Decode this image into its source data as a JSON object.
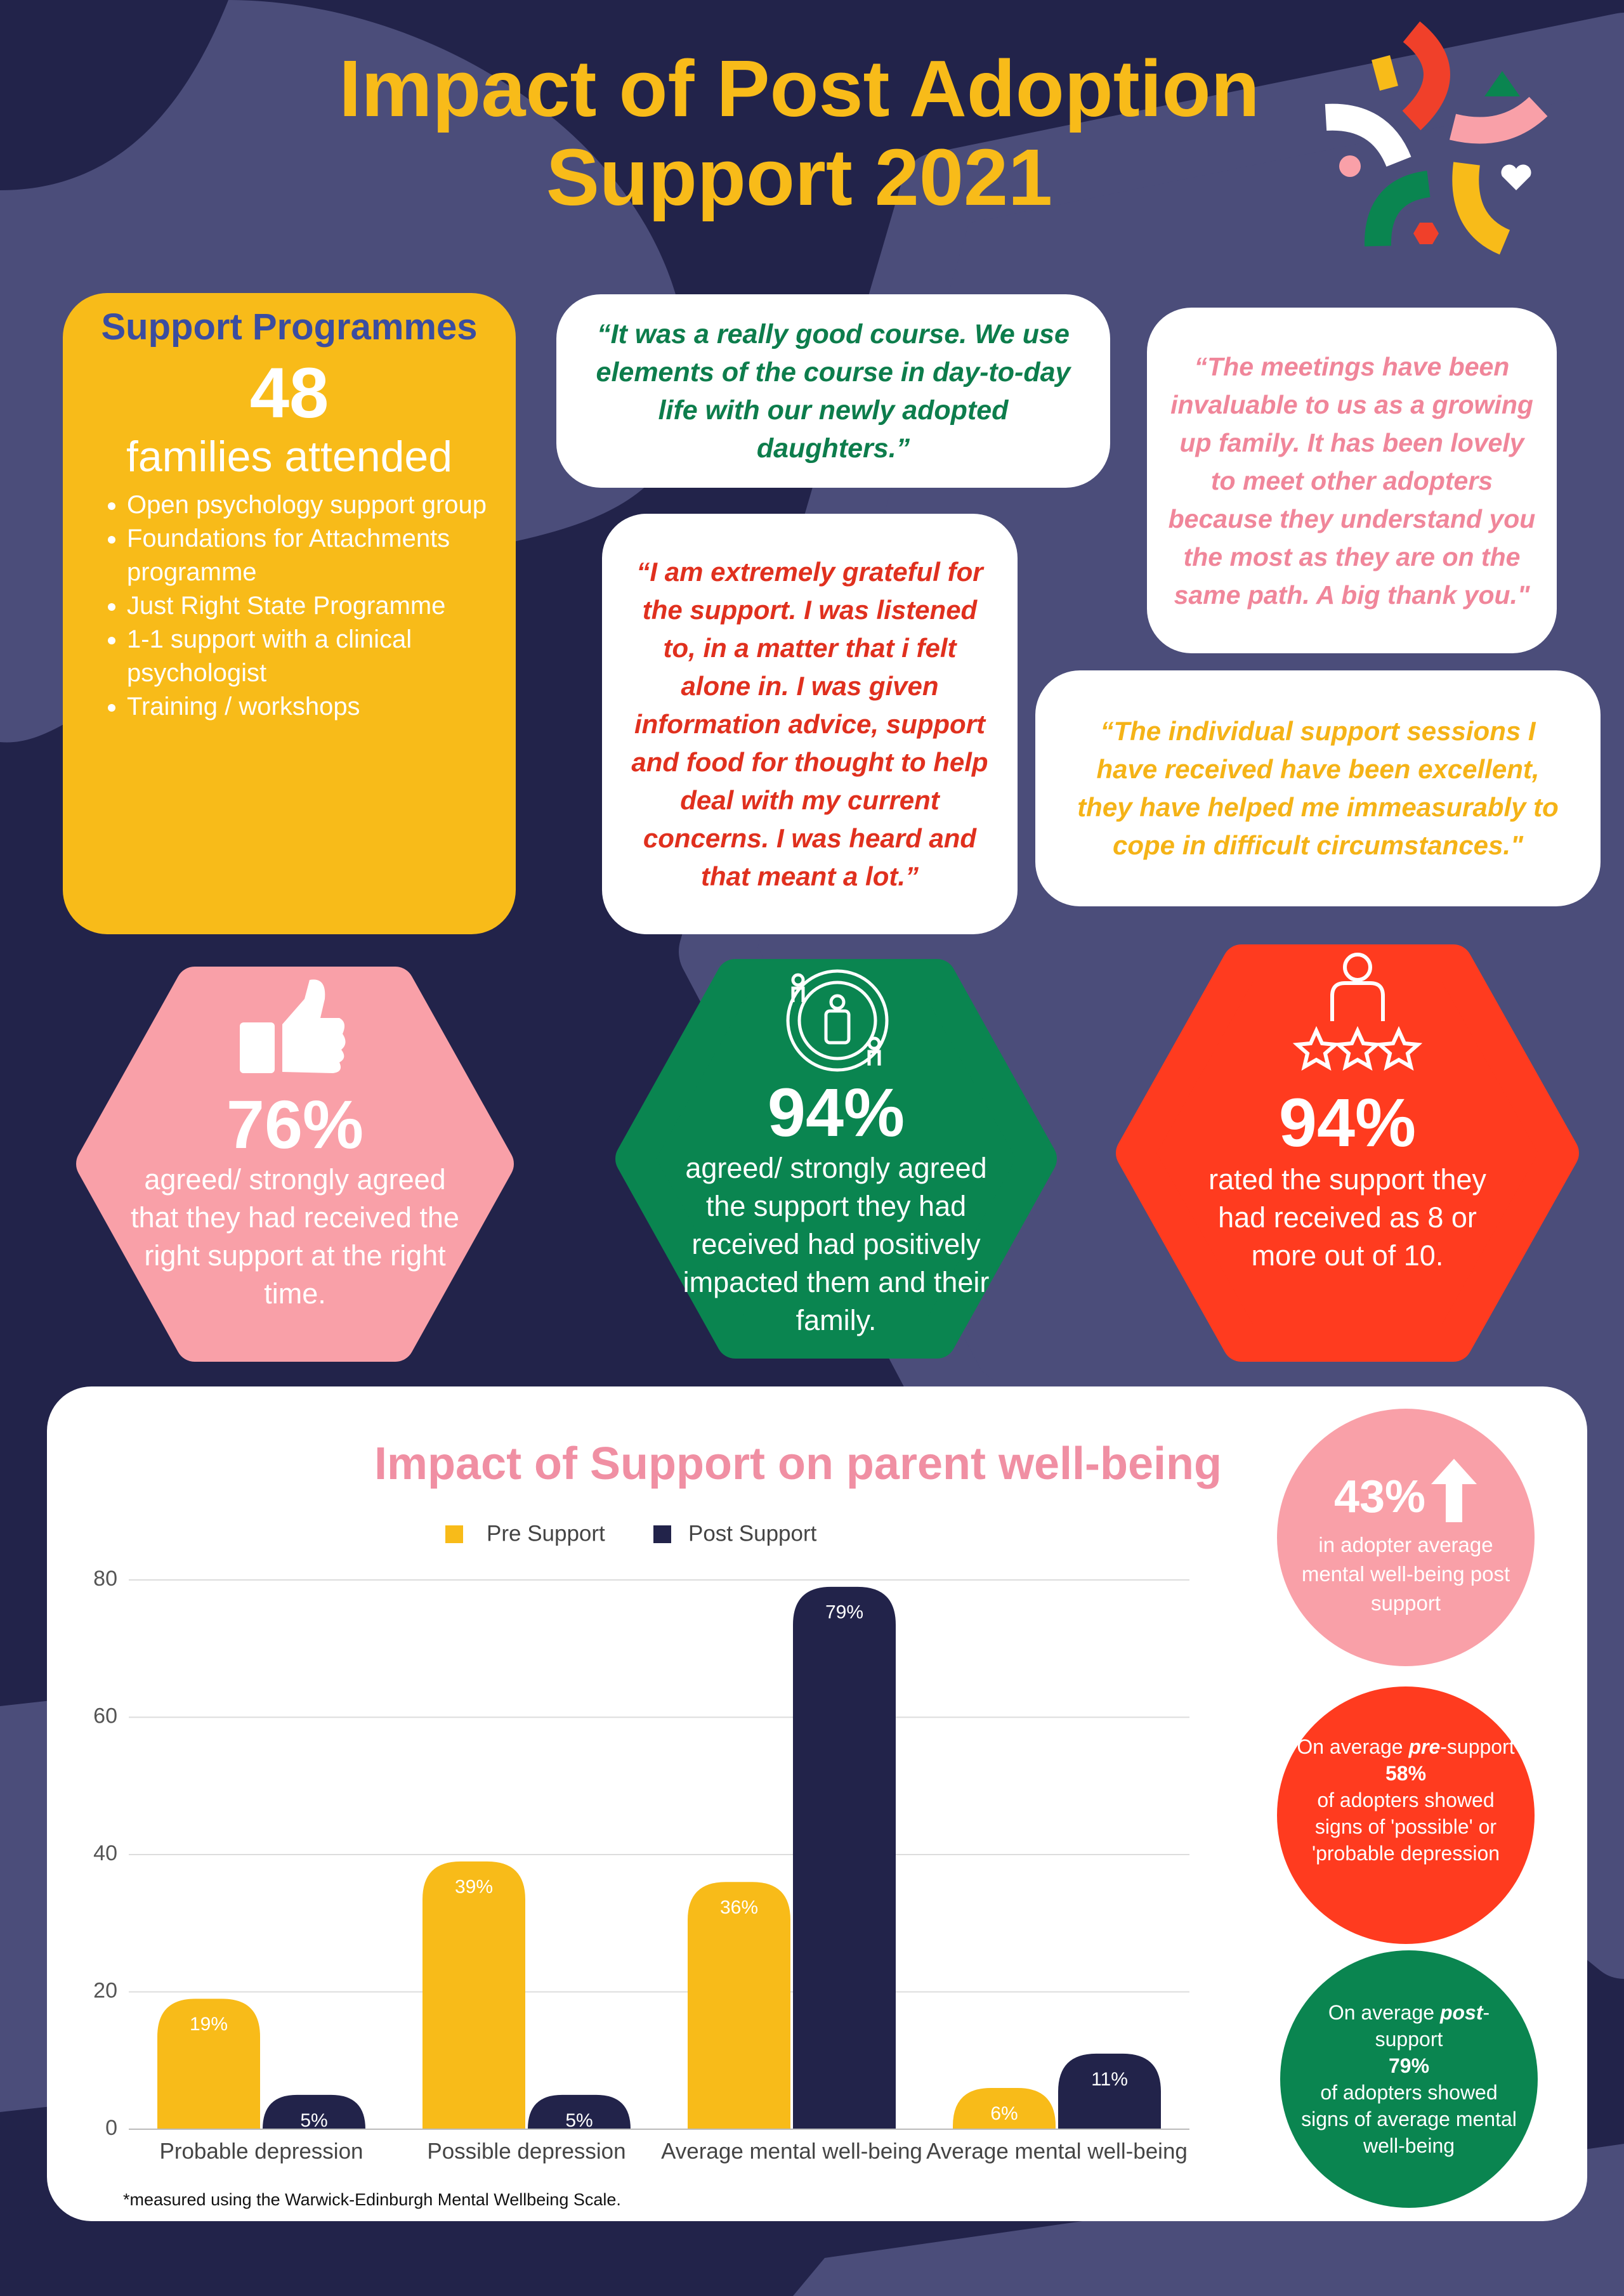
{
  "header": {
    "title": "Impact of Post Adoption Support 2021"
  },
  "programmes": {
    "title": "Support Programmes",
    "count": "48",
    "caption": "families attended",
    "items": [
      "Open psychology support group",
      "Foundations for Attachments programme",
      "Just Right State Programme",
      "1-1 support with a clinical psychologist",
      "Training / workshops"
    ]
  },
  "quotes": [
    "“It was a really good course. We use elements of the course in day-to-day life with our newly adopted daughters.”",
    "“I am extremely grateful for the support. I was listened to, in a matter that i felt alone in. I was given information advice, support and food for thought to help deal with my current concerns. I was heard and that meant a lot.”",
    "“The meetings have been invaluable to us as a growing up family. It has been lovely to meet other adopters because they understand you the most as they are on the same path. A big thank you.\"",
    "“The individual support sessions I have received have been excellent, they have helped me immeasurably to cope in difficult circumstances.\""
  ],
  "stats": [
    {
      "value": "76%",
      "text": "agreed/ strongly agreed that they had received the right support at the right time."
    },
    {
      "value": "94%",
      "text": "agreed/ strongly agreed the support they had received had positively impacted them and their family."
    },
    {
      "value": "94%",
      "text": "rated the support they had received as 8 or more out of 10."
    }
  ],
  "chart_data": {
    "type": "bar",
    "title": "Impact of Support on parent well-being",
    "categories": [
      "Probable depression",
      "Possible depression",
      "Average mental well-being",
      "Average mental well-being"
    ],
    "series": [
      {
        "name": "Pre Support",
        "color": "#f8bb19",
        "values": [
          19,
          39,
          36,
          6
        ],
        "value_labels": [
          "19%",
          "39%",
          "36%",
          "6%"
        ]
      },
      {
        "name": "Post Support",
        "color": "#22234a",
        "values": [
          5,
          5,
          79,
          11
        ],
        "value_labels": [
          "5%",
          "5%",
          "79%",
          "11%"
        ]
      }
    ],
    "ylim": [
      0,
      80
    ],
    "yticks": [
      0,
      20,
      40,
      60,
      80
    ],
    "grid": true,
    "footnote": "*measured using the Warwick-Edinburgh Mental Wellbeing Scale."
  },
  "highlights": [
    {
      "value": "43%",
      "text": "in adopter average mental well-being post support"
    },
    {
      "lead": "On average",
      "emphasis": "pre",
      "after": "-support",
      "value": "58%",
      "text": "of adopters showed signs of 'possible' or 'probable depression"
    },
    {
      "lead": "On average",
      "emphasis": "post",
      "after": "-support",
      "value": "79%",
      "text": "of adopters showed signs of average mental well-being"
    }
  ]
}
